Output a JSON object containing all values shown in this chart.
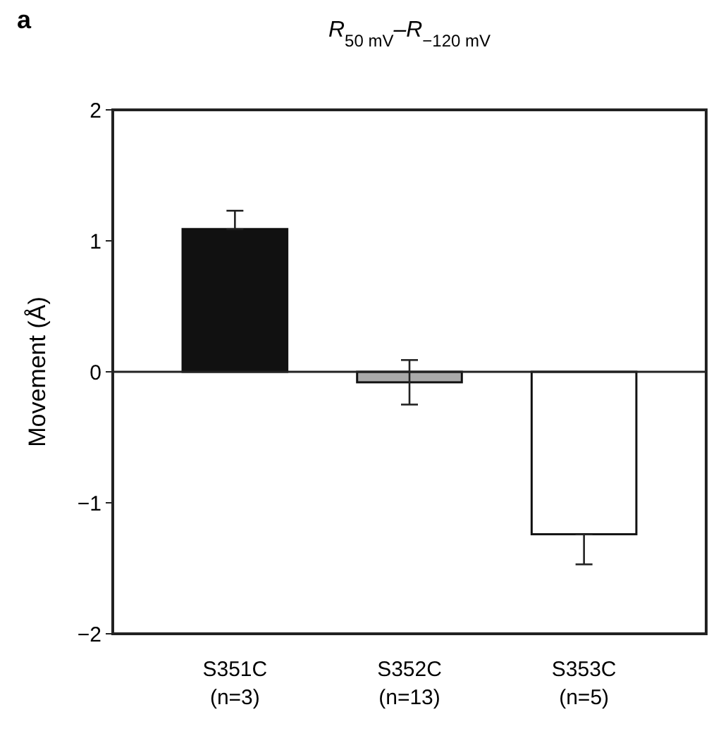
{
  "chart_data": {
    "type": "bar",
    "title": "R$_{50 mV}$–R$_{−120 mV}$",
    "ylabel": "Movement (Å)",
    "categories": [
      "S351C\n(n=3)",
      "S352C\n(n=13)",
      "S353C\n(n=5)"
    ],
    "values": [
      1.09,
      -0.08,
      -1.24
    ],
    "colors": [
      "#111111",
      "#aaaaaa",
      "#ffffff"
    ],
    "errors": [
      [
        1.09,
        1.23
      ],
      [
        -0.25,
        0.09
      ],
      [
        -1.47,
        -1.24
      ]
    ],
    "ylim": [
      -2,
      2
    ],
    "yticks": [
      -2,
      -1,
      0,
      1,
      2
    ],
    "ref_lines": [
      {
        "axis": "y",
        "value": 0
      }
    ],
    "annotations": [
      "a"
    ]
  }
}
